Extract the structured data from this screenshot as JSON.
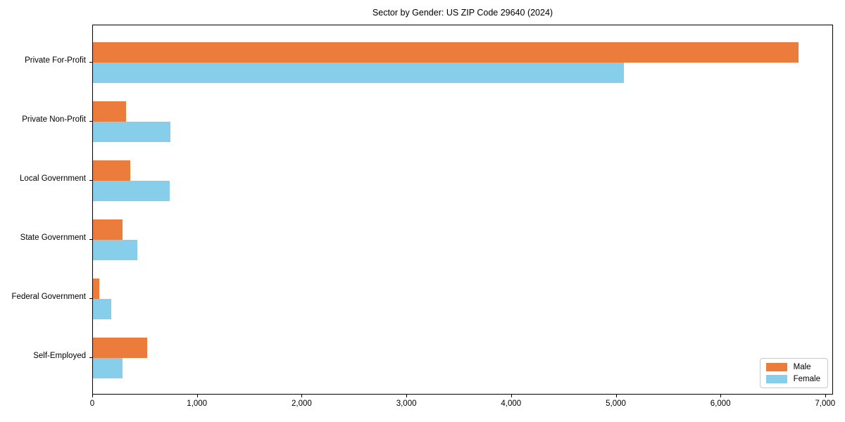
{
  "figure": {
    "background": "#ffffff",
    "axis_color": "#000000"
  },
  "chart_data": {
    "type": "bar",
    "orientation": "horizontal",
    "title": "Sector by Gender: US ZIP Code 29640 (2024)",
    "xlabel": "",
    "ylabel": "",
    "categories": [
      "Private For-Profit",
      "Private Non-Profit",
      "Local Government",
      "State Government",
      "Federal Government",
      "Self-Employed"
    ],
    "series": [
      {
        "name": "Male",
        "color": "#ec7c3c",
        "values": [
          6740,
          315,
          355,
          285,
          60,
          515
        ]
      },
      {
        "name": "Female",
        "color": "#87ceeb",
        "values": [
          5070,
          740,
          730,
          420,
          175,
          280
        ]
      }
    ],
    "xlim": [
      0,
      7075
    ],
    "xticks": [
      0,
      1000,
      2000,
      3000,
      4000,
      5000,
      6000,
      7000
    ],
    "xtick_labels": [
      "0",
      "1,000",
      "2,000",
      "3,000",
      "4,000",
      "5,000",
      "6,000",
      "7,000"
    ],
    "grid": false,
    "legend": {
      "position": "lower right",
      "entries": [
        "Male",
        "Female"
      ]
    }
  }
}
